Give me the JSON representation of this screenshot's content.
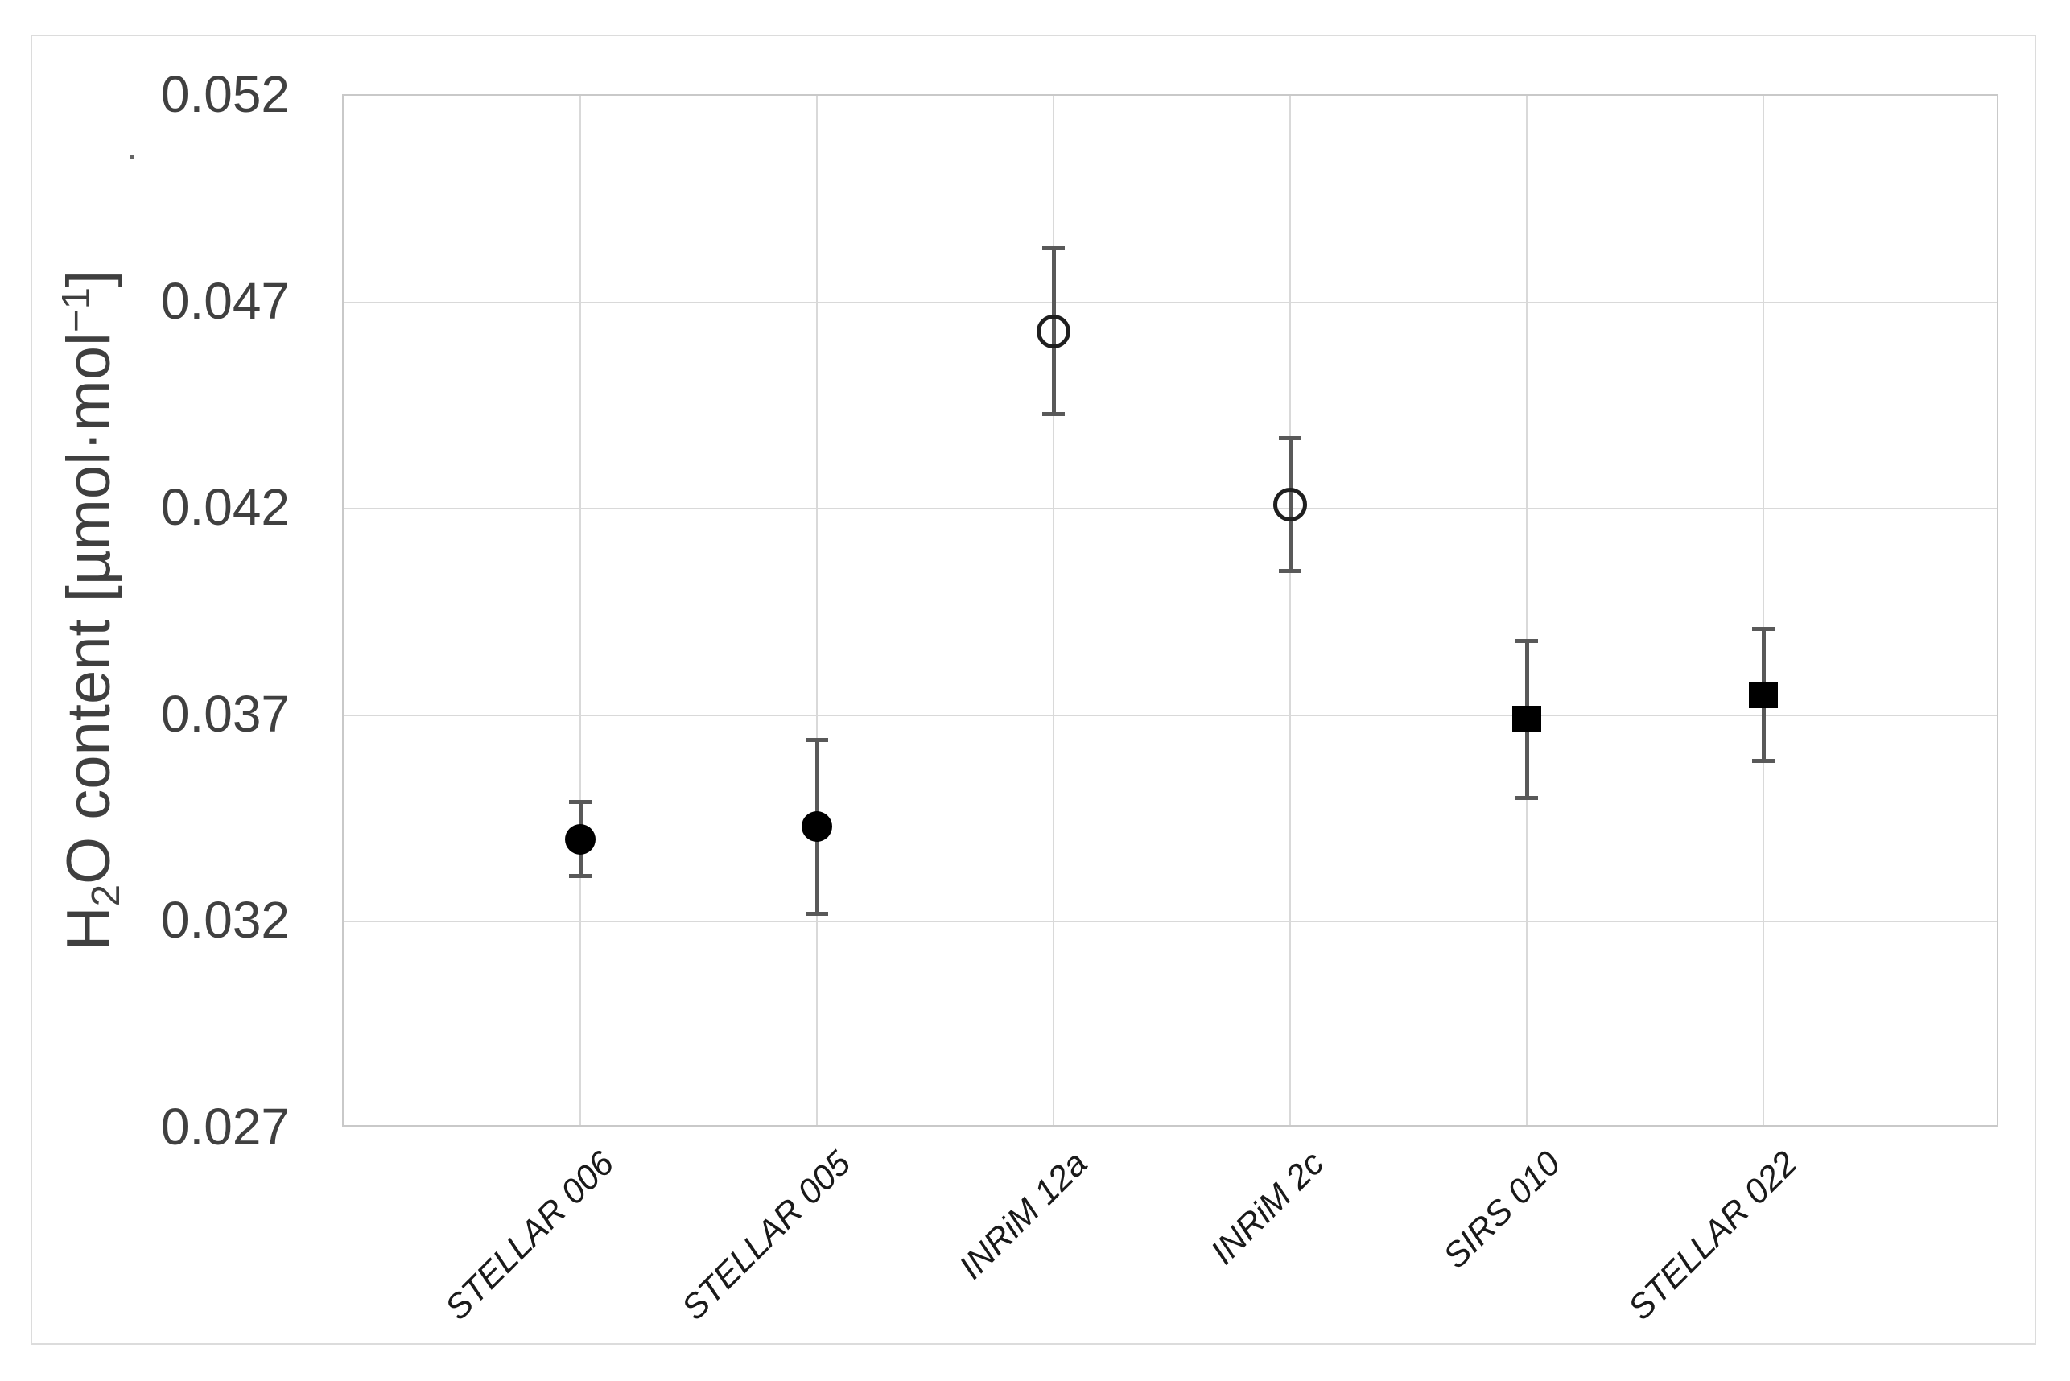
{
  "figure": {
    "background_color": "#ffffff",
    "outer_border_color": "#dcdcdc",
    "plot_border_color": "#c9c9c9",
    "gridline_color": "#d9d9d9",
    "tick_text_color": "#404040",
    "category_text_color": "#1a1a1a",
    "marker_fill_color": "#000000",
    "error_bar_color": "#595959"
  },
  "y_axis": {
    "title_h": "H",
    "title_sub": "2",
    "title_mid": "O content [µmol·mol",
    "title_sup": "−1",
    "title_end": "]",
    "ticks": [
      "0.052",
      "0.047",
      "0.042",
      "0.037",
      "0.032",
      "0.027"
    ]
  },
  "chart_data": {
    "type": "scatter",
    "title": "",
    "xlabel": "",
    "ylabel": "H2O content [µmol·mol⁻¹]",
    "ylim": [
      0.027,
      0.052
    ],
    "yticks": [
      0.052,
      0.047,
      0.042,
      0.037,
      0.032,
      0.027
    ],
    "grid": true,
    "legend": "none",
    "categories": [
      "STELLAR 006",
      "STELLAR 005",
      "INRiM 12a",
      "INRiM 2c",
      "SIRS 010",
      "STELLAR 022"
    ],
    "points": [
      {
        "label": "STELLAR 006",
        "value": 0.034,
        "error": 0.0009,
        "marker": "filled-circle"
      },
      {
        "label": "STELLAR 005",
        "value": 0.0343,
        "error": 0.0021,
        "marker": "filled-circle"
      },
      {
        "label": "INRiM 12a",
        "value": 0.0463,
        "error": 0.002,
        "marker": "open-circle"
      },
      {
        "label": "INRiM 2c",
        "value": 0.0421,
        "error": 0.0016,
        "marker": "open-circle"
      },
      {
        "label": "SIRS 010",
        "value": 0.0369,
        "error": 0.0019,
        "marker": "filled-square"
      },
      {
        "label": "STELLAR 022",
        "value": 0.0375,
        "error": 0.0016,
        "marker": "filled-square"
      }
    ]
  }
}
